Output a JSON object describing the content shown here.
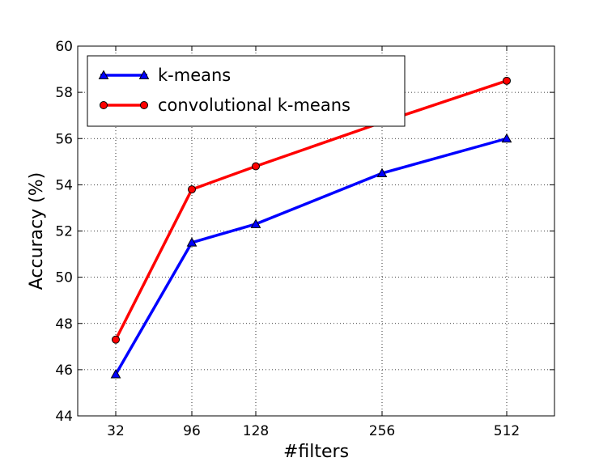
{
  "chart_data": {
    "type": "line",
    "xlabel": "#filters",
    "ylabel": "Accuracy (%)",
    "categories": [
      "32",
      "96",
      "128",
      "256",
      "512"
    ],
    "ylim": [
      44,
      60
    ],
    "yticks": [
      "44",
      "46",
      "48",
      "50",
      "52",
      "54",
      "56",
      "58",
      "60"
    ],
    "grid": true,
    "legend_position": "top-left",
    "series": [
      {
        "name": "k-means",
        "values": [
          45.8,
          51.5,
          52.3,
          54.5,
          56.0
        ],
        "color": "#0000ff",
        "marker": "triangle"
      },
      {
        "name": "convolutional k-means",
        "values": [
          47.3,
          53.8,
          54.8,
          56.7,
          58.5
        ],
        "color": "#ff0000",
        "marker": "circle"
      }
    ]
  }
}
